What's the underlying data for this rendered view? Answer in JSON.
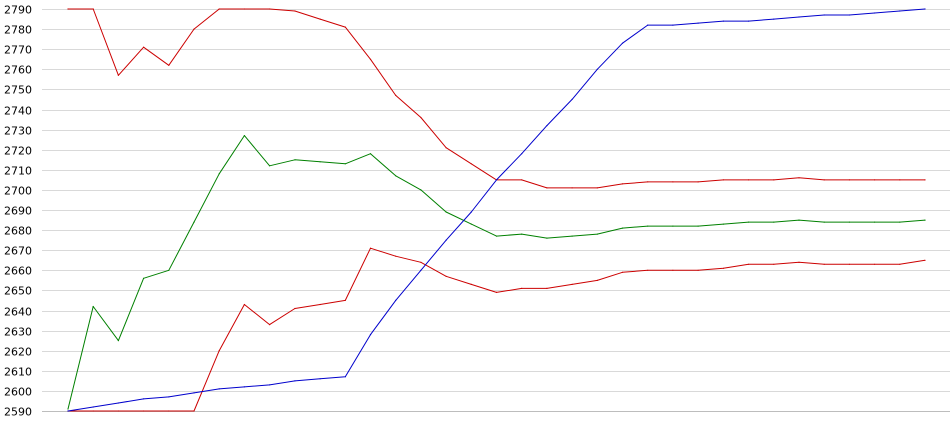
{
  "chart_data": {
    "type": "line",
    "title": "",
    "xlabel": "",
    "ylabel": "",
    "ylim": [
      2590,
      2790
    ],
    "y_ticks": [
      2590,
      2600,
      2610,
      2620,
      2630,
      2640,
      2650,
      2660,
      2670,
      2680,
      2690,
      2700,
      2710,
      2720,
      2730,
      2740,
      2750,
      2760,
      2770,
      2780,
      2790
    ],
    "grid": "horizontal",
    "legend": "none",
    "x": [
      0,
      1,
      2,
      3,
      4,
      5,
      6,
      7,
      8,
      9,
      10,
      11,
      12,
      13,
      14,
      15,
      16,
      17,
      18,
      19,
      20,
      21,
      22,
      23,
      24,
      25,
      26,
      27,
      28,
      29,
      30,
      31,
      32,
      33,
      34
    ],
    "series": [
      {
        "color": "#cc0000",
        "values": [
          2790,
          2790,
          2757,
          2771,
          2762,
          2780,
          2790,
          2790,
          2790,
          2789,
          2785,
          2781,
          2765,
          2747,
          2736,
          2721,
          2713,
          2705,
          2705,
          2701,
          2701,
          2701,
          2703,
          2704,
          2704,
          2704,
          2705,
          2705,
          2705,
          2706,
          2705,
          2705,
          2705,
          2705,
          2705
        ]
      },
      {
        "color": "#008000",
        "values": [
          2591,
          2642,
          2625,
          2656,
          2660,
          2684,
          2708,
          2727,
          2712,
          2715,
          2714,
          2713,
          2718,
          2707,
          2700,
          2689,
          2683,
          2677,
          2678,
          2676,
          2677,
          2678,
          2681,
          2682,
          2682,
          2682,
          2683,
          2684,
          2684,
          2685,
          2684,
          2684,
          2684,
          2684,
          2685
        ]
      },
      {
        "color": "#cc0000",
        "values": [
          2590,
          2590,
          2590,
          2590,
          2590,
          2590,
          2620,
          2643,
          2633,
          2641,
          2643,
          2645,
          2671,
          2667,
          2664,
          2657,
          2653,
          2649,
          2651,
          2651,
          2653,
          2655,
          2659,
          2660,
          2660,
          2660,
          2661,
          2663,
          2663,
          2664,
          2663,
          2663,
          2663,
          2663,
          2665
        ]
      },
      {
        "color": "#0000cc",
        "values": [
          2590,
          2592,
          2594,
          2596,
          2597,
          2599,
          2601,
          2602,
          2603,
          2605,
          2606,
          2607,
          2628,
          2645,
          2660,
          2675,
          2689,
          2705,
          2718,
          2732,
          2745,
          2760,
          2773,
          2782,
          2782,
          2783,
          2784,
          2784,
          2785,
          2786,
          2787,
          2787,
          2788,
          2789,
          2790
        ]
      }
    ]
  }
}
